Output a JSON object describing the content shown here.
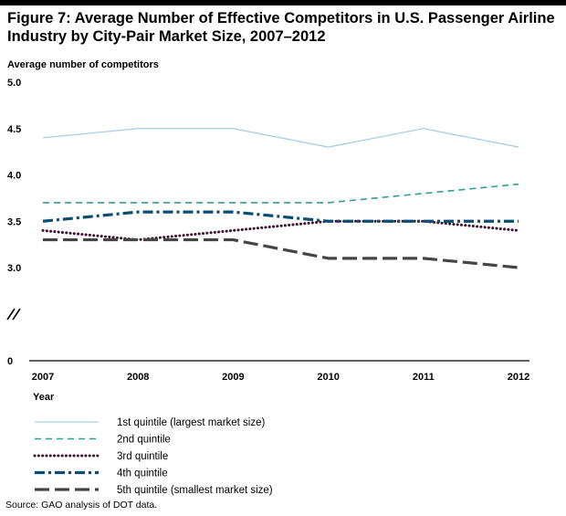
{
  "title": "Figure 7: Average Number of Effective Competitors in U.S. Passenger Airline Industry by City-Pair Market Size, 2007–2012",
  "source": "Source: GAO analysis of DOT data.",
  "chart_data": {
    "type": "line",
    "title": "Figure 7: Average Number of Effective Competitors in U.S. Passenger Airline Industry by City-Pair Market Size, 2007–2012",
    "ylabel": "Average number of competitors",
    "xlabel": "Year",
    "x": [
      "2007",
      "2008",
      "2009",
      "2010",
      "2011",
      "2012"
    ],
    "y_ticks": [
      "5.0",
      "4.5",
      "4.0",
      "3.5",
      "3.0",
      "0"
    ],
    "ylim": [
      0,
      5.0
    ],
    "y_axis_break": true,
    "grid": false,
    "legend_position": "bottom-left",
    "series": [
      {
        "name": "1st quintile (largest market size)",
        "values": [
          4.4,
          4.5,
          4.5,
          4.3,
          4.5,
          4.3
        ],
        "color": "#a9cde3",
        "style": "solid"
      },
      {
        "name": "2nd quintile",
        "values": [
          3.7,
          3.7,
          3.7,
          3.7,
          3.8,
          3.9
        ],
        "color": "#2f9e95",
        "style": "dashed"
      },
      {
        "name": "3rd quintile",
        "values": [
          3.4,
          3.3,
          3.4,
          3.5,
          3.5,
          3.4
        ],
        "color": "#3d1530",
        "style": "dotted"
      },
      {
        "name": "4th quintile",
        "values": [
          3.5,
          3.6,
          3.6,
          3.5,
          3.5,
          3.5
        ],
        "color": "#0e4d72",
        "style": "dashdot"
      },
      {
        "name": "5th quintile (smallest market size)",
        "values": [
          3.3,
          3.3,
          3.3,
          3.1,
          3.1,
          3.0
        ],
        "color": "#454545",
        "style": "longdash"
      }
    ]
  }
}
